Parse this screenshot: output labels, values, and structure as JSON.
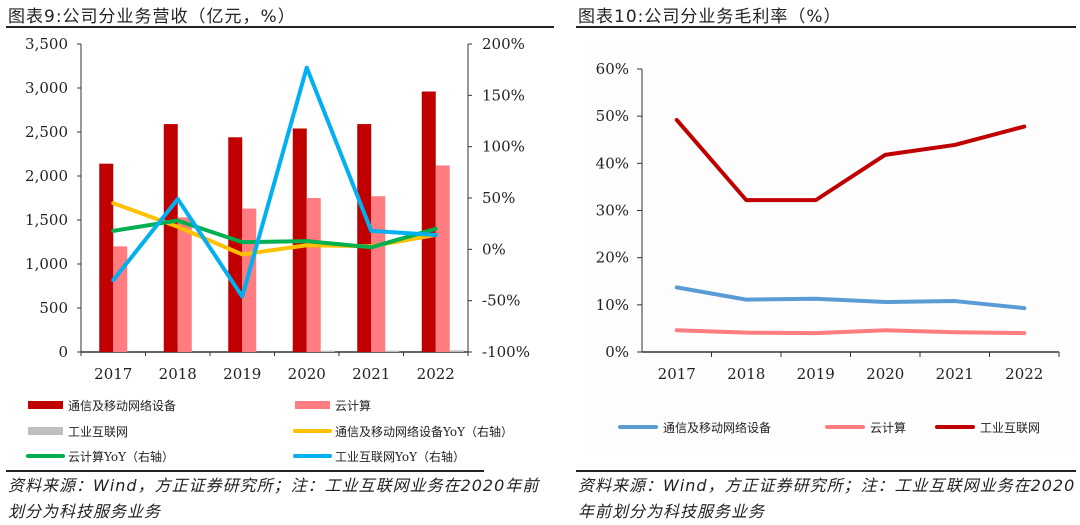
{
  "left": {
    "title": "图表9:公司分业务营收（亿元，%）",
    "note": "资料来源：Wind，方正证券研究所；注：工业互联网业务在2020年前划分为科技服务业务"
  },
  "right": {
    "title": "图表10:公司分业务毛利率（%）",
    "note": "资料来源：Wind，方正证券研究所；注：工业互联网业务在2020年前划分为科技服务业务"
  },
  "chart_data": [
    {
      "type": "bar",
      "title": "图表9:公司分业务营收（亿元，%）",
      "categories": [
        "2017",
        "2018",
        "2019",
        "2020",
        "2021",
        "2022"
      ],
      "ylim": [
        0,
        3500
      ],
      "yticks": [
        "0",
        "500",
        "1,000",
        "1,500",
        "2,000",
        "2,500",
        "3,000",
        "3,500"
      ],
      "y2lim": [
        -100,
        200
      ],
      "y2ticks": [
        "-100%",
        "-50%",
        "0%",
        "50%",
        "100%",
        "150%",
        "200%"
      ],
      "legend_position": "bottom",
      "bar_series": [
        {
          "name": "通信及移动网络设备",
          "color": "#c00000",
          "values": [
            2140,
            2590,
            2440,
            2540,
            2590,
            2960
          ]
        },
        {
          "name": "云计算",
          "color": "#ff7c80",
          "values": [
            1200,
            1530,
            1630,
            1750,
            1770,
            2120
          ]
        },
        {
          "name": "工业互联网",
          "color": "#bfbfbf",
          "values": [
            0,
            0,
            0,
            15,
            15,
            20
          ]
        }
      ],
      "line_series": [
        {
          "name": "通信及移动网络设备YoY（右轴）",
          "color": "#ffc000",
          "axis": "right",
          "values": [
            45,
            22,
            -5,
            4,
            3,
            14
          ]
        },
        {
          "name": "云计算YoY（右轴）",
          "color": "#00b050",
          "axis": "right",
          "values": [
            18,
            28,
            7,
            8,
            2,
            20
          ]
        },
        {
          "name": "工业互联网YoY（右轴）",
          "color": "#00b0f0",
          "axis": "right",
          "values": [
            -30,
            49,
            -46,
            177,
            18,
            14
          ]
        }
      ]
    },
    {
      "type": "line",
      "title": "图表10:公司分业务毛利率（%）",
      "categories": [
        "2017",
        "2018",
        "2019",
        "2020",
        "2021",
        "2022"
      ],
      "ylim": [
        0,
        60
      ],
      "yticks": [
        "0%",
        "10%",
        "20%",
        "30%",
        "40%",
        "50%",
        "60%"
      ],
      "legend_position": "bottom",
      "series": [
        {
          "name": "通信及移动网络设备",
          "color": "#5b9bd5",
          "values": [
            13.7,
            11.1,
            11.3,
            10.6,
            10.8,
            9.3
          ]
        },
        {
          "name": "云计算",
          "color": "#ff7c80",
          "values": [
            4.6,
            4.1,
            4.0,
            4.6,
            4.2,
            4.0
          ]
        },
        {
          "name": "工业互联网",
          "color": "#c00000",
          "values": [
            49.2,
            32.2,
            32.2,
            41.8,
            43.9,
            47.8
          ]
        }
      ]
    }
  ]
}
